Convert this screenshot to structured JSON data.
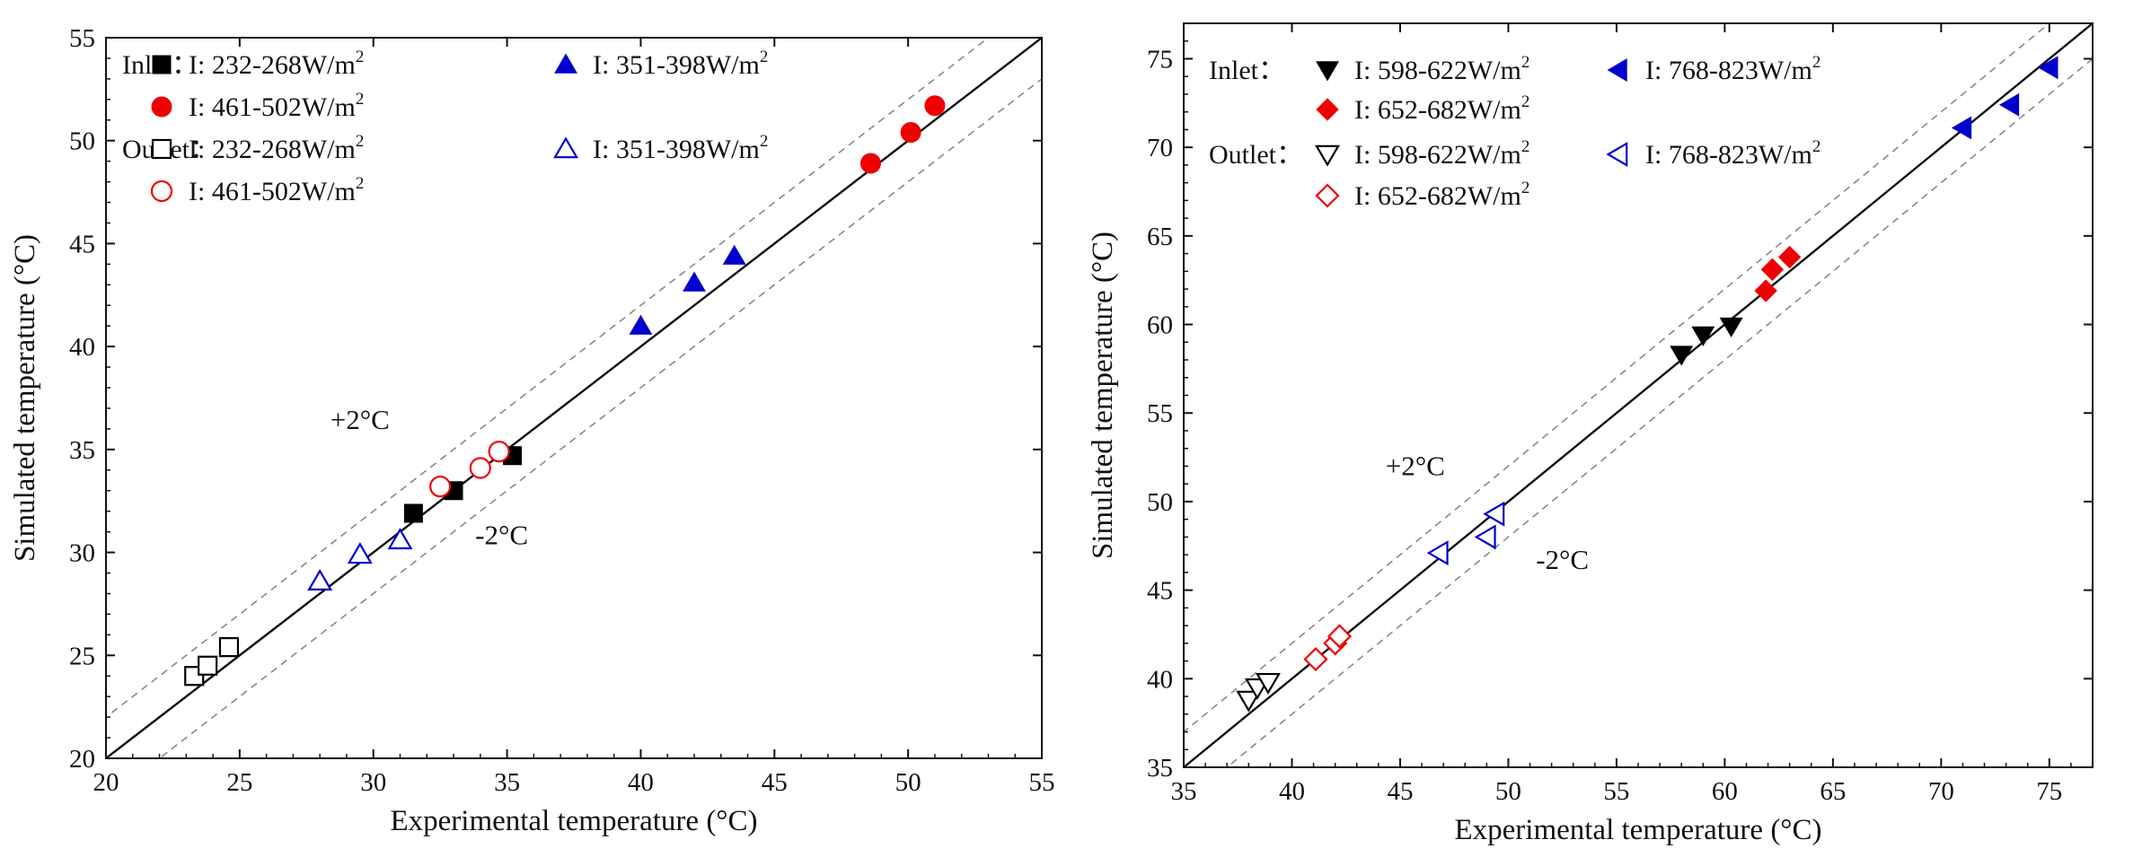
{
  "chart_data": [
    {
      "type": "scatter",
      "xlabel": "Experimental temperature  (°C)",
      "ylabel": "Simulated temperature (°C)",
      "xlim": [
        20,
        55
      ],
      "ylim": [
        20,
        55
      ],
      "xticks": [
        "20",
        "25",
        "30",
        "35",
        "40",
        "45",
        "50",
        "55"
      ],
      "yticks": [
        "20",
        "25",
        "30",
        "35",
        "40",
        "45",
        "50",
        "55"
      ],
      "reference_lines": [
        {
          "name": "y = x",
          "offset": 0,
          "style": "solid"
        },
        {
          "name": "+2°C",
          "offset": 2,
          "style": "dashed"
        },
        {
          "name": "-2°C",
          "offset": -2,
          "style": "dashed"
        }
      ],
      "annotations": [
        {
          "text": "+2°C",
          "x": 29.5,
          "y": 36
        },
        {
          "text": "-2°C",
          "x": 34.8,
          "y": 30.4
        }
      ],
      "legend": {
        "inlet_title": "Inlet：",
        "outlet_title": "Outlet："
      },
      "series": [
        {
          "name": "I: 232-268W/m",
          "sup": "2",
          "group": "Inlet",
          "marker": "square",
          "filled": true,
          "color": "#000000",
          "points": [
            [
              31.5,
              31.9
            ],
            [
              33.0,
              33.0
            ],
            [
              35.2,
              34.7
            ]
          ]
        },
        {
          "name": "I:  351-398W/m",
          "sup": "2",
          "group": "Inlet",
          "marker": "triangle-up",
          "filled": true,
          "color": "#0000cc",
          "points": [
            [
              40.0,
              41.0
            ],
            [
              42.0,
              43.1
            ],
            [
              43.5,
              44.4
            ]
          ]
        },
        {
          "name": "I: 461-502W/m",
          "sup": "2",
          "group": "Inlet",
          "marker": "circle",
          "filled": true,
          "color": "#ee0000",
          "points": [
            [
              48.6,
              48.9
            ],
            [
              50.1,
              50.4
            ],
            [
              51.0,
              51.7
            ]
          ]
        },
        {
          "name": "I: 232-268W/m",
          "sup": "2",
          "group": "Outlet",
          "marker": "square",
          "filled": false,
          "color": "#000000",
          "points": [
            [
              23.3,
              24.0
            ],
            [
              23.8,
              24.5
            ],
            [
              24.6,
              25.4
            ]
          ]
        },
        {
          "name": "I:  351-398W/m",
          "sup": "2",
          "group": "Outlet",
          "marker": "triangle-up",
          "filled": false,
          "color": "#0000cc",
          "points": [
            [
              28.0,
              28.6
            ],
            [
              29.5,
              29.9
            ],
            [
              31.0,
              30.6
            ]
          ]
        },
        {
          "name": "I: 461-502W/m",
          "sup": "2",
          "group": "Outlet",
          "marker": "circle",
          "filled": false,
          "color": "#ee0000",
          "points": [
            [
              32.5,
              33.2
            ],
            [
              34.0,
              34.1
            ],
            [
              34.7,
              34.9
            ]
          ]
        }
      ]
    },
    {
      "type": "scatter",
      "xlabel": "Experimental temperature  (°C)",
      "ylabel": "Simulated temperature (°C)",
      "xlim": [
        35,
        77
      ],
      "ylim": [
        35,
        77
      ],
      "xticks": [
        "35",
        "40",
        "45",
        "50",
        "55",
        "60",
        "65",
        "70",
        "75"
      ],
      "yticks": [
        "35",
        "40",
        "45",
        "50",
        "55",
        "60",
        "65",
        "70",
        "75"
      ],
      "reference_lines": [
        {
          "name": "y = x",
          "offset": 0,
          "style": "solid"
        },
        {
          "name": "+2°C",
          "offset": 2,
          "style": "dashed"
        },
        {
          "name": "-2°C",
          "offset": -2,
          "style": "dashed"
        }
      ],
      "annotations": [
        {
          "text": "+2°C",
          "x": 45.7,
          "y": 51.5
        },
        {
          "text": "-2°C",
          "x": 52.5,
          "y": 46.2
        }
      ],
      "legend": {
        "inlet_title": "Inlet：",
        "outlet_title": "Outlet："
      },
      "series": [
        {
          "name": "I: 598-622W/m",
          "sup": "2",
          "group": "Inlet",
          "marker": "triangle-down",
          "filled": true,
          "color": "#000000",
          "points": [
            [
              58.0,
              58.3
            ],
            [
              59.0,
              59.4
            ],
            [
              60.3,
              59.9
            ]
          ]
        },
        {
          "name": "I:  768-823W/m",
          "sup": "2",
          "group": "Inlet",
          "marker": "triangle-left",
          "filled": true,
          "color": "#0000cc",
          "points": [
            [
              71.0,
              71.1
            ],
            [
              73.2,
              72.4
            ],
            [
              75.0,
              74.5
            ]
          ]
        },
        {
          "name": "I: 652-682W/m",
          "sup": "2",
          "group": "Inlet",
          "marker": "diamond",
          "filled": true,
          "color": "#ee0000",
          "points": [
            [
              61.9,
              61.9
            ],
            [
              62.2,
              63.1
            ],
            [
              63.0,
              63.8
            ]
          ]
        },
        {
          "name": "I: 598-622W/m",
          "sup": "2",
          "group": "Outlet",
          "marker": "triangle-down",
          "filled": false,
          "color": "#000000",
          "points": [
            [
              38.0,
              38.8
            ],
            [
              38.4,
              39.5
            ],
            [
              38.9,
              39.8
            ]
          ]
        },
        {
          "name": "I:  768-823W/m",
          "sup": "2",
          "group": "Outlet",
          "marker": "triangle-left",
          "filled": false,
          "color": "#0000cc",
          "points": [
            [
              46.8,
              47.1
            ],
            [
              49.0,
              48.0
            ],
            [
              49.4,
              49.3
            ]
          ]
        },
        {
          "name": "I: 652-682W/m",
          "sup": "2",
          "group": "Outlet",
          "marker": "diamond",
          "filled": false,
          "color": "#ee0000",
          "points": [
            [
              41.1,
              41.1
            ],
            [
              42.0,
              42.0
            ],
            [
              42.2,
              42.4
            ]
          ]
        }
      ]
    }
  ]
}
